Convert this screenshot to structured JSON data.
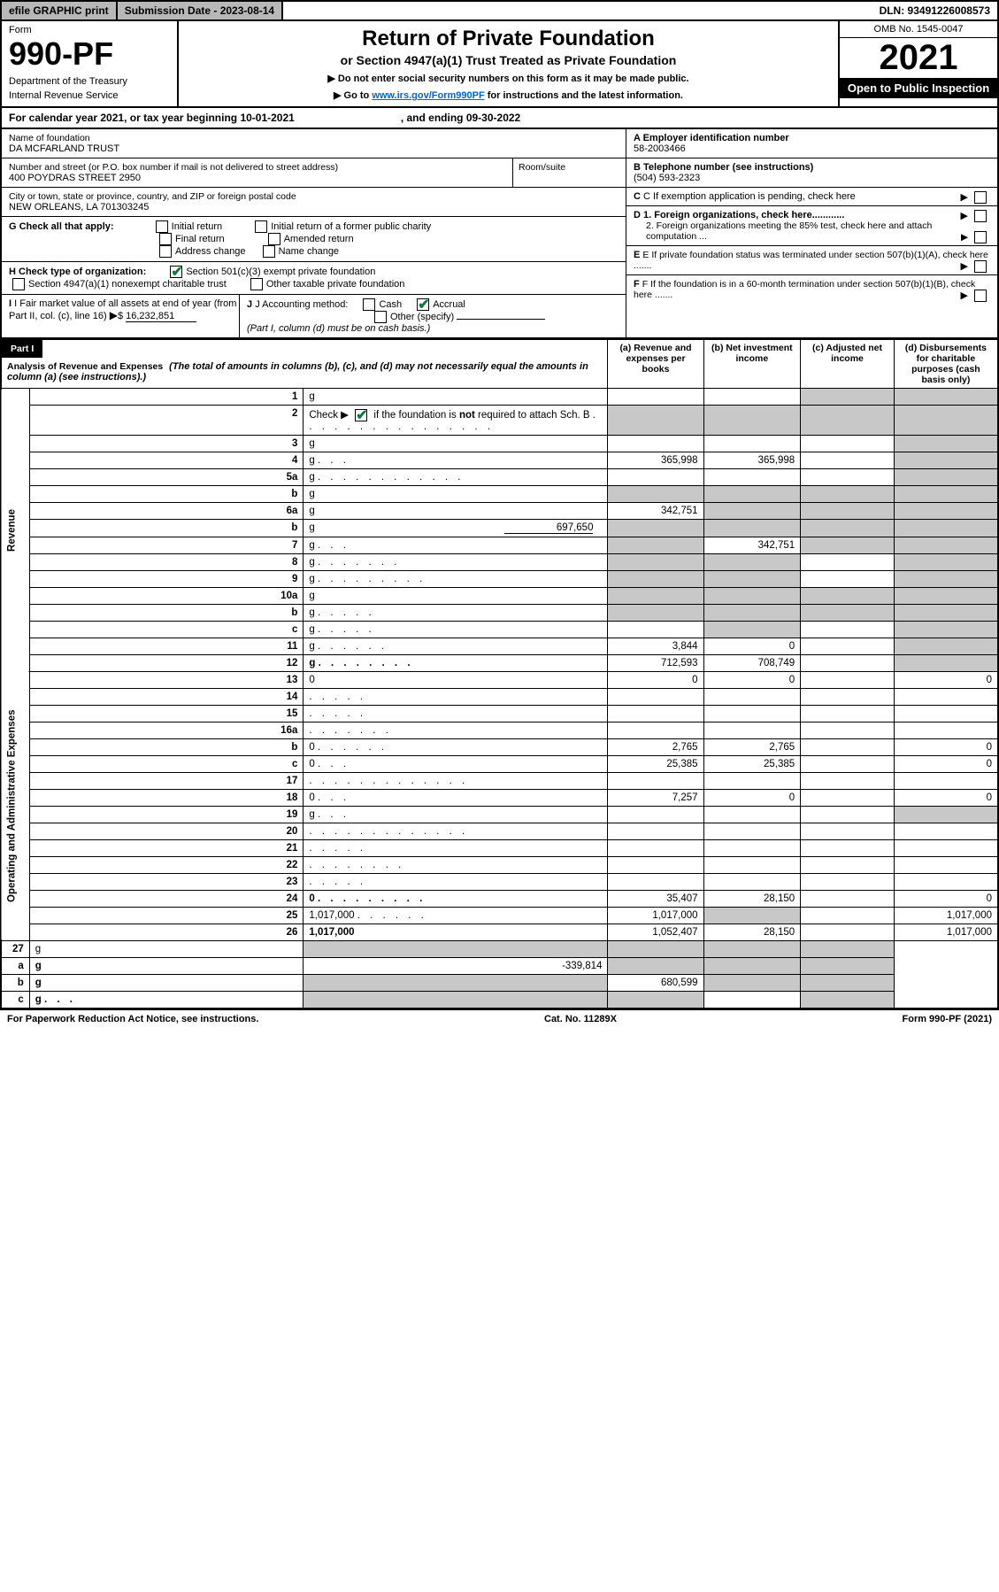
{
  "top": {
    "efile": "efile GRAPHIC print",
    "submission": "Submission Date - 2023-08-14",
    "dln": "DLN: 93491226008573"
  },
  "header": {
    "form_label": "Form",
    "form_number": "990-PF",
    "dept1": "Department of the Treasury",
    "dept2": "Internal Revenue Service",
    "title": "Return of Private Foundation",
    "subtitle": "or Section 4947(a)(1) Trust Treated as Private Foundation",
    "note1": "▶ Do not enter social security numbers on this form as it may be made public.",
    "note2_pre": "▶ Go to ",
    "note2_link": "www.irs.gov/Form990PF",
    "note2_post": " for instructions and the latest information.",
    "omb": "OMB No. 1545-0047",
    "year": "2021",
    "open": "Open to Public Inspection"
  },
  "calendar": {
    "text1": "For calendar year 2021, or tax year beginning 10-01-2021",
    "text2": ", and ending 09-30-2022"
  },
  "info": {
    "name_label": "Name of foundation",
    "name": "DA MCFARLAND TRUST",
    "addr_label": "Number and street (or P.O. box number if mail is not delivered to street address)",
    "addr": "400 POYDRAS STREET 2950",
    "room_label": "Room/suite",
    "city_label": "City or town, state or province, country, and ZIP or foreign postal code",
    "city": "NEW ORLEANS, LA  701303245",
    "a_label": "A Employer identification number",
    "a_val": "58-2003466",
    "b_label": "B Telephone number (see instructions)",
    "b_val": "(504) 593-2323",
    "c_label": "C If exemption application is pending, check here",
    "d1": "D 1. Foreign organizations, check here............",
    "d2": "2. Foreign organizations meeting the 85% test, check here and attach computation ...",
    "e_label": "E  If private foundation status was terminated under section 507(b)(1)(A), check here .......",
    "f_label": "F  If the foundation is in a 60-month termination under section 507(b)(1)(B), check here .......",
    "g_label": "G Check all that apply:",
    "g_opts": [
      "Initial return",
      "Initial return of a former public charity",
      "Final return",
      "Amended return",
      "Address change",
      "Name change"
    ],
    "h_label": "H Check type of organization:",
    "h1": "Section 501(c)(3) exempt private foundation",
    "h2": "Section 4947(a)(1) nonexempt charitable trust",
    "h3": "Other taxable private foundation",
    "i_label": "I Fair market value of all assets at end of year (from Part II, col. (c), line 16)",
    "i_val": "16,232,851",
    "j_label": "J Accounting method:",
    "j_cash": "Cash",
    "j_accrual": "Accrual",
    "j_other": "Other (specify)",
    "j_note": "(Part I, column (d) must be on cash basis.)"
  },
  "part1": {
    "label": "Part I",
    "title": "Analysis of Revenue and Expenses",
    "desc": "(The total of amounts in columns (b), (c), and (d) may not necessarily equal the amounts in column (a) (see instructions).)",
    "col_a": "(a)  Revenue and expenses per books",
    "col_b": "(b)  Net investment income",
    "col_c": "(c)  Adjusted net income",
    "col_d": "(d)  Disbursements for charitable purposes (cash basis only)"
  },
  "sections": {
    "revenue": "Revenue",
    "operating": "Operating and Administrative Expenses"
  },
  "rows": [
    {
      "n": "1",
      "d": "g",
      "a": "",
      "b": "",
      "c": "g"
    },
    {
      "n": "2",
      "d": "g",
      "dots": ". . . . . . . . . . . . . . . .",
      "a": "g",
      "b": "g",
      "c": "g",
      "checked": true
    },
    {
      "n": "3",
      "d": "g",
      "a": "",
      "b": "",
      "c": ""
    },
    {
      "n": "4",
      "d": "g",
      "dots": ". . .",
      "a": "365,998",
      "b": "365,998",
      "c": ""
    },
    {
      "n": "5a",
      "d": "g",
      "dots": ". . . . . . . . . . . .",
      "a": "",
      "b": "",
      "c": ""
    },
    {
      "n": "b",
      "d": "g",
      "a": "g",
      "b": "g",
      "c": "g",
      "pl": true,
      "blank": true
    },
    {
      "n": "6a",
      "d": "g",
      "a": "342,751",
      "b": "g",
      "c": "g"
    },
    {
      "n": "b",
      "d": "g",
      "v": "697,650",
      "a": "g",
      "b": "g",
      "c": "g",
      "pl": true,
      "inline": true
    },
    {
      "n": "7",
      "d": "g",
      "dots": ". . .",
      "a": "g",
      "b": "342,751",
      "c": "g"
    },
    {
      "n": "8",
      "d": "g",
      "dots": ". . . . . . .",
      "a": "g",
      "b": "g",
      "c": ""
    },
    {
      "n": "9",
      "d": "g",
      "dots": ". . . . . . . . .",
      "a": "g",
      "b": "g",
      "c": ""
    },
    {
      "n": "10a",
      "d": "g",
      "a": "g",
      "b": "g",
      "c": "g",
      "blank": true
    },
    {
      "n": "b",
      "d": "g",
      "dots": ". . . . .",
      "a": "g",
      "b": "g",
      "c": "g",
      "pl": true,
      "blank": true
    },
    {
      "n": "c",
      "d": "g",
      "dots": ". . . . .",
      "a": "",
      "b": "g",
      "c": "",
      "pl": true
    },
    {
      "n": "11",
      "d": "g",
      "dots": ". . . . . .",
      "a": "3,844",
      "b": "0",
      "c": ""
    },
    {
      "n": "12",
      "d": "g",
      "dots": ". . . . . . . .",
      "a": "712,593",
      "b": "708,749",
      "c": "",
      "bold": true
    }
  ],
  "exp_rows": [
    {
      "n": "13",
      "d": "0",
      "a": "0",
      "b": "0",
      "c": ""
    },
    {
      "n": "14",
      "d": "",
      "dots": ". . . . .",
      "a": "",
      "b": "",
      "c": ""
    },
    {
      "n": "15",
      "d": "",
      "dots": ". . . . .",
      "a": "",
      "b": "",
      "c": ""
    },
    {
      "n": "16a",
      "d": "",
      "dots": ". . . . . . .",
      "a": "",
      "b": "",
      "c": ""
    },
    {
      "n": "b",
      "d": "0",
      "dots": ". . . . . .",
      "a": "2,765",
      "b": "2,765",
      "c": "",
      "pl": true
    },
    {
      "n": "c",
      "d": "0",
      "dots": ". . .",
      "a": "25,385",
      "b": "25,385",
      "c": "",
      "pl": true
    },
    {
      "n": "17",
      "d": "",
      "dots": ". . . . . . . . . . . . .",
      "a": "",
      "b": "",
      "c": ""
    },
    {
      "n": "18",
      "d": "0",
      "dots": ". . .",
      "a": "7,257",
      "b": "0",
      "c": ""
    },
    {
      "n": "19",
      "d": "g",
      "dots": ". . .",
      "a": "",
      "b": "",
      "c": ""
    },
    {
      "n": "20",
      "d": "",
      "dots": ". . . . . . . . . . . . .",
      "a": "",
      "b": "",
      "c": ""
    },
    {
      "n": "21",
      "d": "",
      "dots": ". . . . .",
      "a": "",
      "b": "",
      "c": ""
    },
    {
      "n": "22",
      "d": "",
      "dots": ". . . . . . . .",
      "a": "",
      "b": "",
      "c": ""
    },
    {
      "n": "23",
      "d": "",
      "dots": ". . . . .",
      "a": "",
      "b": "",
      "c": ""
    },
    {
      "n": "24",
      "d": "0",
      "dots": ". . . . . . . . .",
      "a": "35,407",
      "b": "28,150",
      "c": "",
      "bold": true
    },
    {
      "n": "25",
      "d": "1,017,000",
      "dots": ". . . . . .",
      "a": "1,017,000",
      "b": "g",
      "c": ""
    },
    {
      "n": "26",
      "d": "1,017,000",
      "a": "1,052,407",
      "b": "28,150",
      "c": "",
      "bold": true
    }
  ],
  "net_rows": [
    {
      "n": "27",
      "d": "g",
      "a": "g",
      "b": "g",
      "c": "g"
    },
    {
      "n": "a",
      "d": "g",
      "a": "-339,814",
      "b": "g",
      "c": "g",
      "pl": true,
      "bold": true
    },
    {
      "n": "b",
      "d": "g",
      "a": "g",
      "b": "680,599",
      "c": "g",
      "pl": true,
      "bold": true
    },
    {
      "n": "c",
      "d": "g",
      "dots": ". . .",
      "a": "g",
      "b": "g",
      "c": "",
      "pl": true,
      "bold": true
    }
  ],
  "footer": {
    "left": "For Paperwork Reduction Act Notice, see instructions.",
    "mid": "Cat. No. 11289X",
    "right": "Form 990-PF (2021)"
  },
  "colors": {
    "grey": "#c8c8c8",
    "link": "#0066cc",
    "check": "#0a7a3a"
  }
}
